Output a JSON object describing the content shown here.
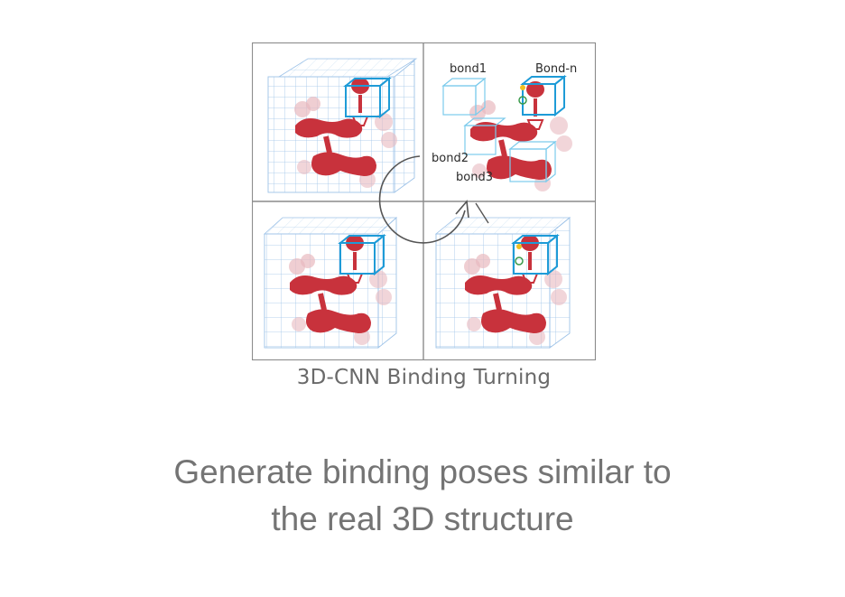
{
  "figure": {
    "caption": "3D-CNN Binding Turning",
    "bond_labels": [
      "bond1",
      "Bond-n",
      "bond2",
      "bond3"
    ],
    "colors": {
      "molecule": "#c8323c",
      "molecule_shadow": "#e8b9bf",
      "grid": "#9ec3e8",
      "highlight_box": "#1e9bd7",
      "panel_border": "#8c8c8c",
      "arrow": "#555555"
    }
  },
  "description": {
    "line1": "Generate binding poses similar to",
    "line2": "the real 3D structure"
  }
}
